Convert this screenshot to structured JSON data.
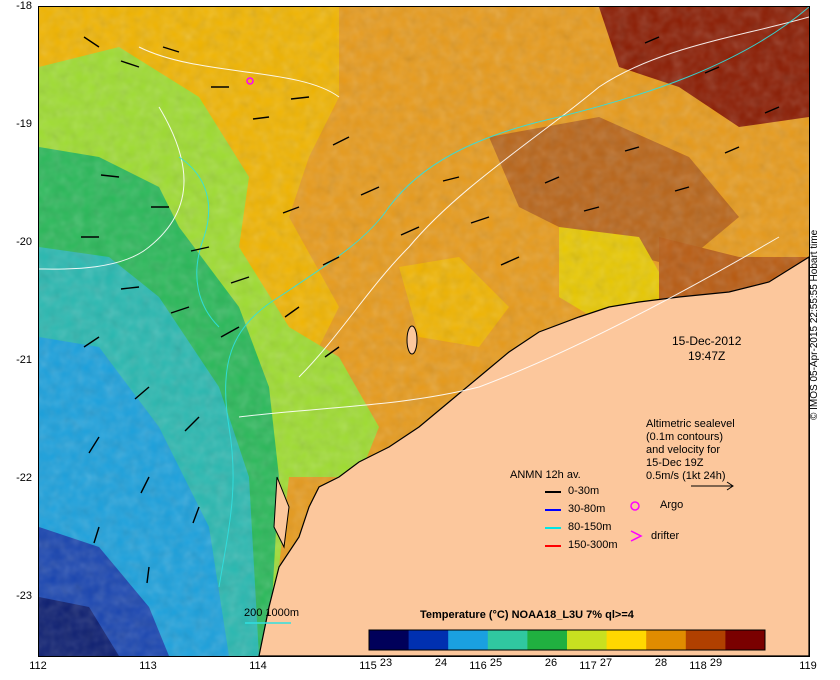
{
  "axes": {
    "y_ticks": [
      "-18",
      "-19",
      "-20",
      "-21",
      "-22",
      "-23"
    ],
    "x_ticks": [
      "112",
      "113",
      "114",
      "115",
      "116",
      "117",
      "118",
      "119"
    ]
  },
  "timestamp": {
    "date": "15-Dec-2012",
    "time": "19:47Z"
  },
  "altimetry_note": [
    "Altimetric sealevel",
    "(0.1m contours)",
    "and velocity for",
    "15-Dec 19Z",
    "0.5m/s (1kt 24h)"
  ],
  "anmn_legend": {
    "title": "ANMN 12h av.",
    "items": [
      {
        "label": "0-30m",
        "color": "#000000"
      },
      {
        "label": "30-80m",
        "color": "#0000ff"
      },
      {
        "label": "80-150m",
        "color": "#00e5e5"
      },
      {
        "label": "150-300m",
        "color": "#ff0000"
      }
    ]
  },
  "markers": {
    "argo_label": "Argo",
    "drifter_label": "drifter",
    "argo_color": "#ff00ff"
  },
  "bathymetry_label": "200  1000m",
  "colorbar": {
    "title": "Temperature (°C) NOAA18_L3U 7% ql>=4",
    "labels": [
      "23",
      "24",
      "25",
      "26",
      "27",
      "28",
      "29"
    ],
    "colors": [
      "#00005a",
      "#0030b0",
      "#1aa0e0",
      "#30c8a0",
      "#20b040",
      "#c8e020",
      "#ffd800",
      "#e08c00",
      "#b04000",
      "#7a0000"
    ]
  },
  "credit": "© IMOS 05-Apr-2015 22:55:55 Hobart time",
  "land_color": "#fcc79c"
}
